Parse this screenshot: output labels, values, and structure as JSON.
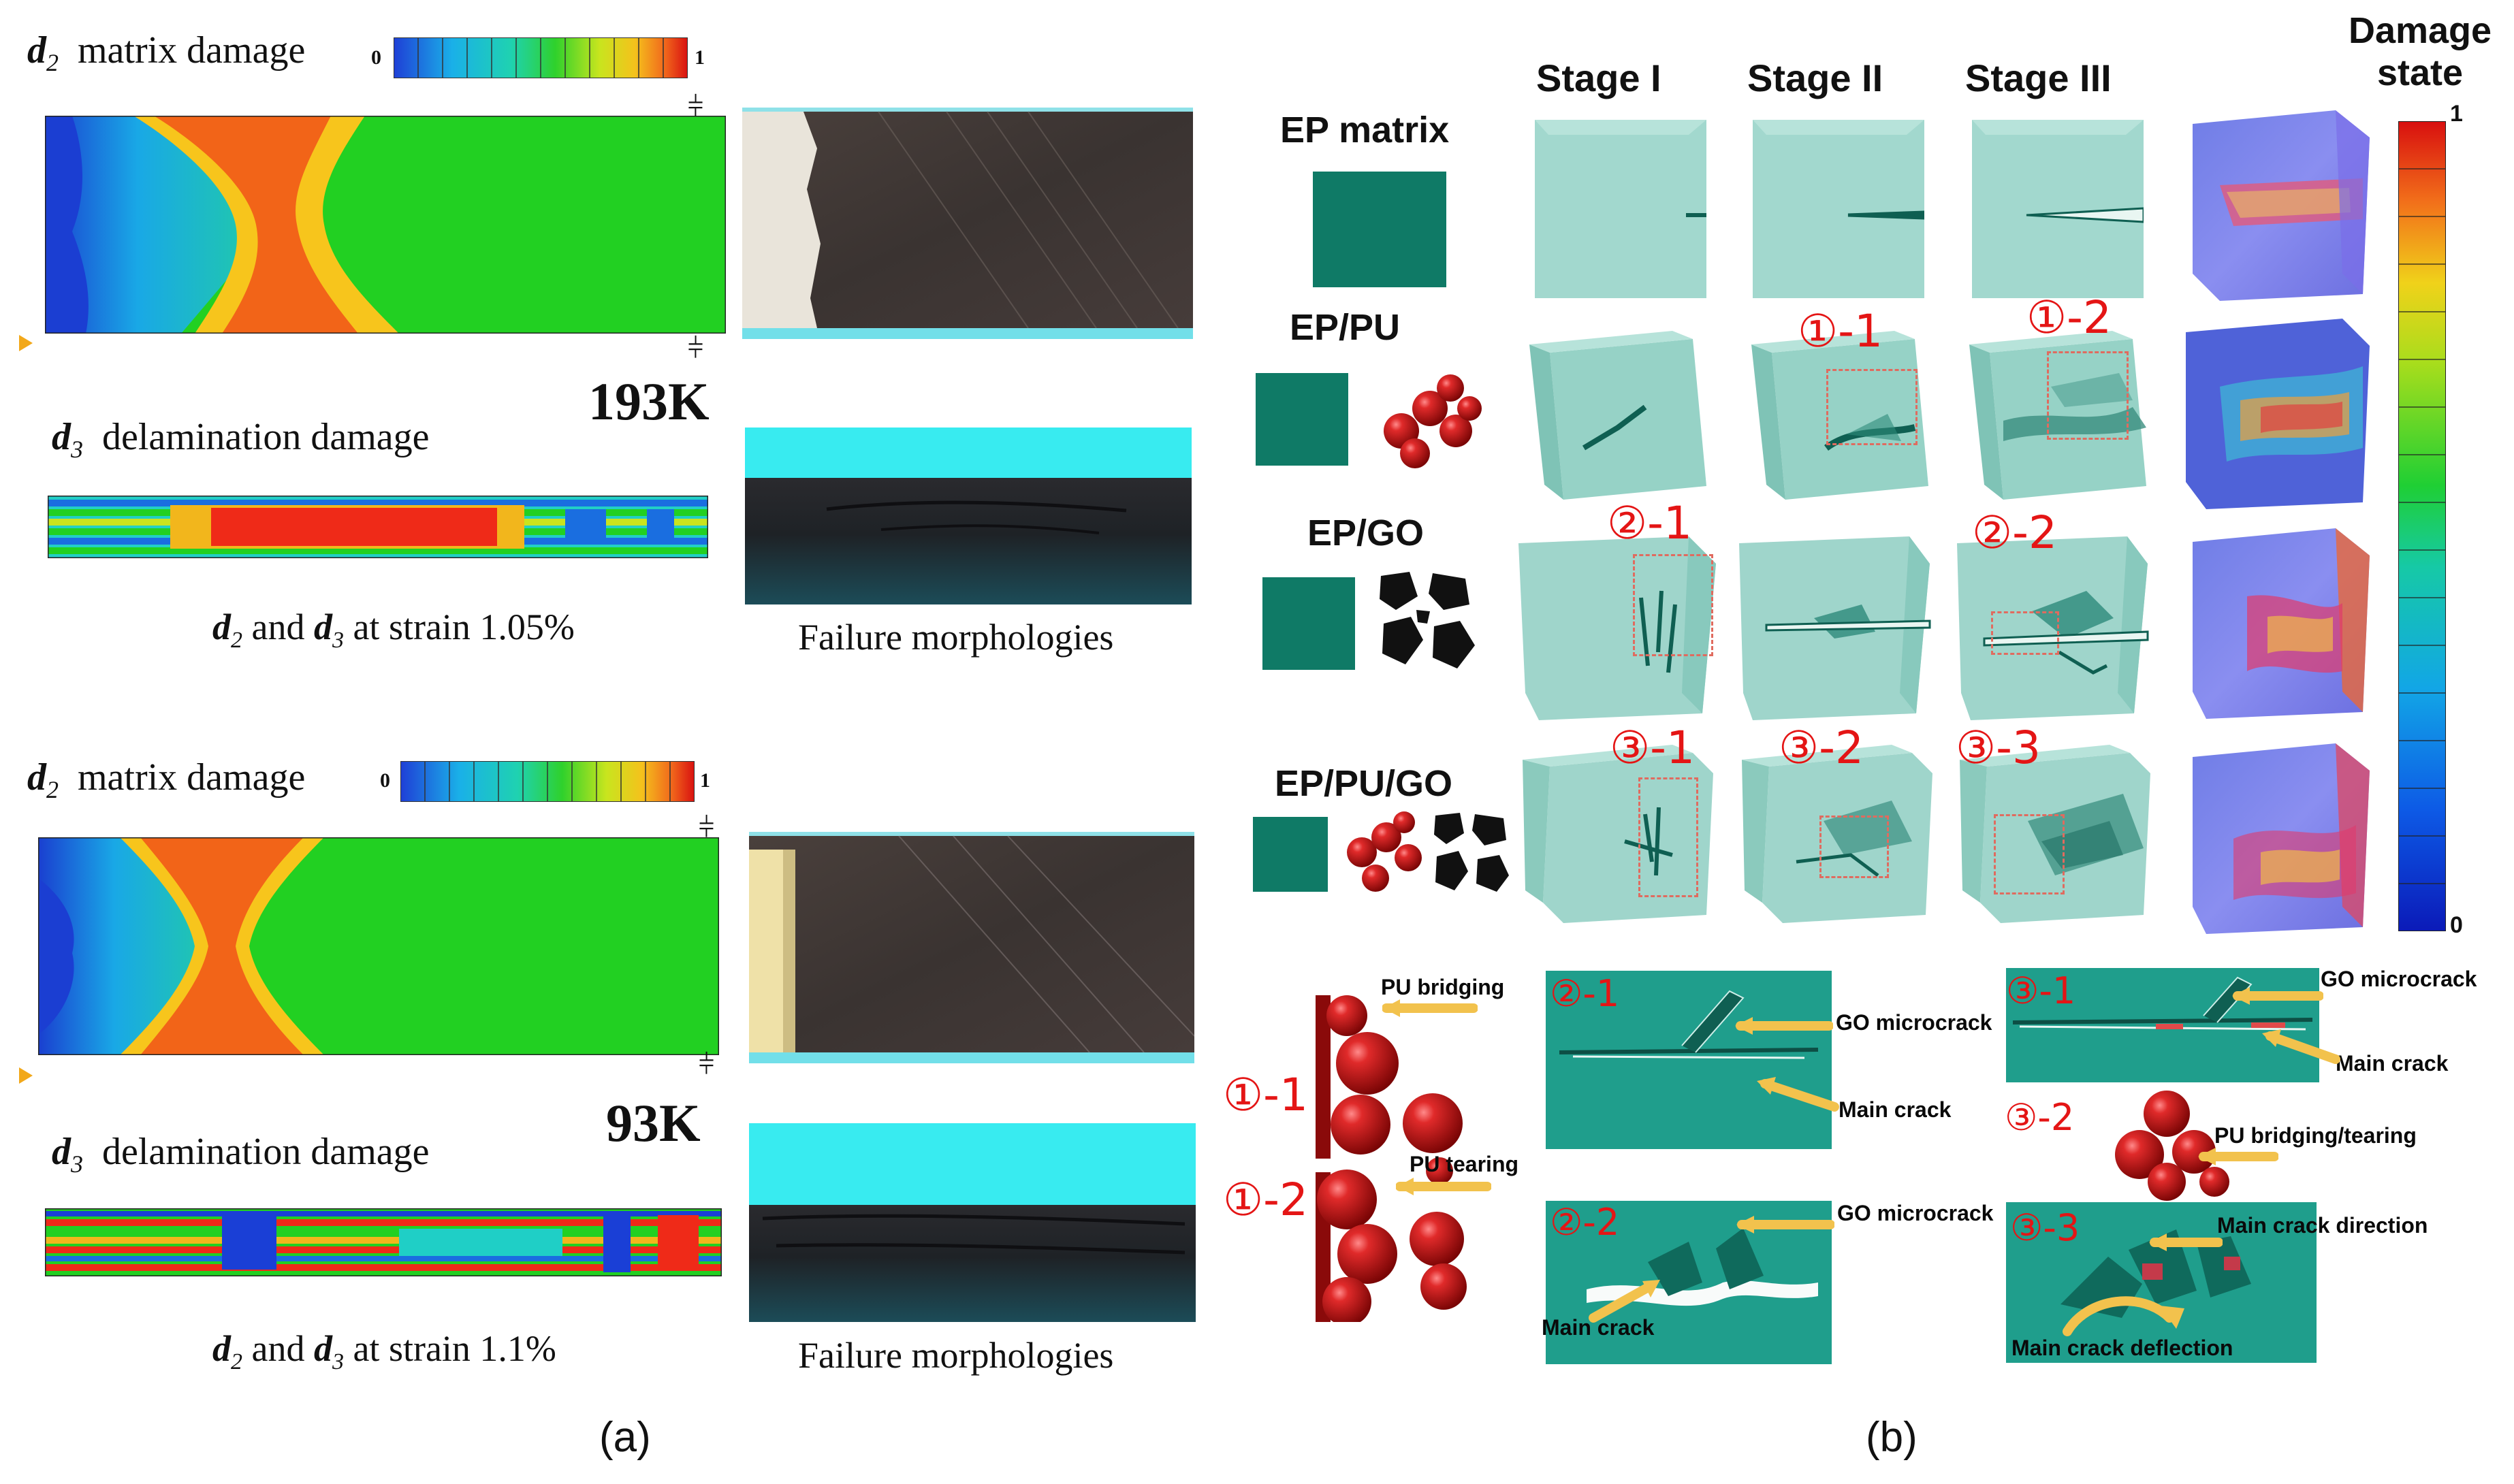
{
  "panel_a": {
    "block1": {
      "d2_symbol": "d",
      "d2_sub": "2",
      "d2_label": "matrix damage",
      "scale_min": "0",
      "scale_max": "1",
      "temp": "193K",
      "d3_symbol": "d",
      "d3_sub": "3",
      "d3_label": "delamination damage",
      "caption_pre": "d",
      "caption_sub1": "2",
      "caption_mid": " and ",
      "caption_d3": "d",
      "caption_sub2": "3",
      "caption_post": " at strain 1.05%",
      "failure_label": "Failure morphologies"
    },
    "block2": {
      "d2_symbol": "d",
      "d2_sub": "2",
      "d2_label": "matrix damage",
      "scale_min": "0",
      "scale_max": "1",
      "temp": "93K",
      "d3_symbol": "d",
      "d3_sub": "3",
      "d3_label": "delamination damage",
      "caption_pre": "d",
      "caption_sub1": "2",
      "caption_mid": " and ",
      "caption_d3": "d",
      "caption_sub2": "3",
      "caption_post": " at strain 1.1%",
      "failure_label": "Failure morphologies"
    },
    "label": "(a)"
  },
  "panel_b": {
    "stages": [
      "Stage I",
      "Stage II",
      "Stage III"
    ],
    "damage_state_line1": "Damage",
    "damage_state_line2": "state",
    "colorbar_max": "1",
    "colorbar_min": "0",
    "rows": [
      "EP matrix",
      "EP/PU",
      "EP/GO",
      "EP/PU/GO"
    ],
    "markers": {
      "m11": "①-1",
      "m12": "①-2",
      "m21": "②-1",
      "m22": "②-2",
      "m31": "③-1",
      "m32": "③-2",
      "m33": "③-3"
    },
    "details": {
      "pu_bridging": "PU bridging",
      "pu_tearing": "PU tearing",
      "go_microcrack_1": "GO microcrack",
      "main_crack_1": "Main crack",
      "go_microcrack_2": "GO microcrack",
      "main_crack_2": "Main crack",
      "go_microcrack_3": "GO microcrack",
      "main_crack_3": "Main crack",
      "pu_bridging_tearing": "PU bridging/tearing",
      "main_crack_direction": "Main crack direction",
      "main_crack_deflection": "Main crack deflection"
    },
    "label": "(b)"
  },
  "colors": {
    "teal_matrix": "#0f7a66",
    "cube_face": "#9fd5cb",
    "detail_bg": "#1f9e8c",
    "pu_red": "#c41818",
    "damage_green": "#22d022",
    "damage_orange": "#f26418",
    "photo_dark": "#403834",
    "photo_cyan": "#69dde6",
    "marker_red": "#e41515",
    "arrow_yellow": "#f2c24d"
  }
}
